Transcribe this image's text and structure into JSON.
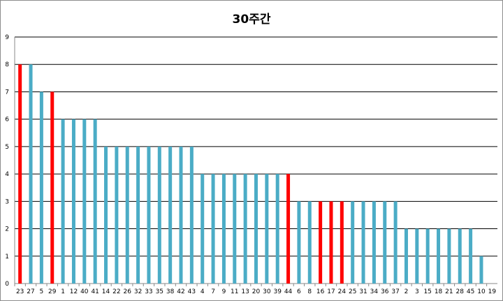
{
  "chart_data": {
    "type": "bar",
    "title": "30주간",
    "xlabel": "",
    "ylabel": "",
    "ylim": [
      0,
      9
    ],
    "yticks": [
      0,
      1,
      2,
      3,
      4,
      5,
      6,
      7,
      8,
      9
    ],
    "grid": true,
    "legend": "none",
    "categories": [
      "23",
      "27",
      "5",
      "29",
      "1",
      "12",
      "40",
      "41",
      "14",
      "22",
      "26",
      "32",
      "33",
      "35",
      "38",
      "42",
      "43",
      "4",
      "7",
      "9",
      "11",
      "13",
      "20",
      "30",
      "39",
      "44",
      "6",
      "8",
      "16",
      "17",
      "24",
      "25",
      "31",
      "34",
      "36",
      "37",
      "2",
      "3",
      "15",
      "18",
      "21",
      "28",
      "45",
      "10",
      "19"
    ],
    "values": [
      8,
      8,
      7,
      7,
      6,
      6,
      6,
      6,
      5,
      5,
      5,
      5,
      5,
      5,
      5,
      5,
      5,
      4,
      4,
      4,
      4,
      4,
      4,
      4,
      4,
      4,
      3,
      3,
      3,
      3,
      3,
      3,
      3,
      3,
      3,
      3,
      2,
      2,
      2,
      2,
      2,
      2,
      2,
      1,
      0
    ],
    "highlight": [
      "23",
      "29",
      "44",
      "16",
      "17",
      "24"
    ],
    "colors": {
      "bar": "#4bacc6",
      "highlight": "#ff0000",
      "grid": "#000000",
      "axis": "#888888"
    }
  }
}
